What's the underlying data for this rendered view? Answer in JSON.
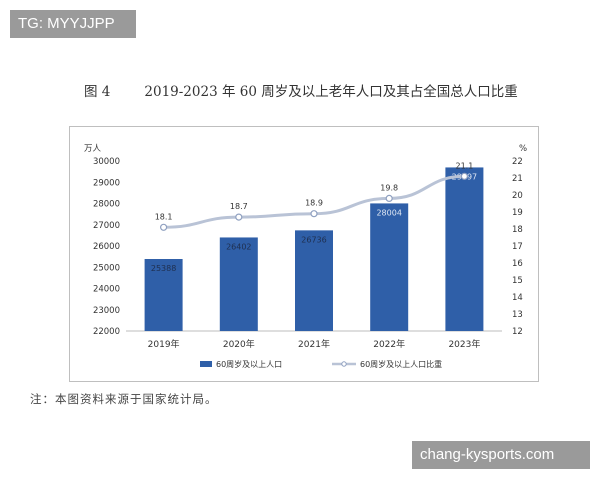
{
  "watermark_top": "TG: MYYJJPP",
  "watermark_bottom": "chang-kysports.com",
  "figure": {
    "label": "图 4",
    "title": "2019-2023 年 60 周岁及以上老年人口及其占全国总人口比重"
  },
  "note": "注：本图资料来源于国家统计局。",
  "chart_data": {
    "type": "bar+line",
    "categories": [
      "2019年",
      "2020年",
      "2021年",
      "2022年",
      "2023年"
    ],
    "series": [
      {
        "name": "60周岁及以上人口",
        "kind": "bar",
        "axis": "left",
        "values": [
          25388,
          26402,
          26736,
          28004,
          29697
        ],
        "color": "#2f5fa8"
      },
      {
        "name": "60周岁及以上人口比重",
        "kind": "line",
        "axis": "right",
        "values": [
          18.1,
          18.7,
          18.9,
          19.8,
          21.1
        ],
        "color": "#b9c3d6"
      }
    ],
    "y_left": {
      "unit": "万人",
      "range": [
        22000,
        30000
      ],
      "ticks": [
        22000,
        23000,
        24000,
        25000,
        26000,
        27000,
        28000,
        29000,
        30000
      ]
    },
    "y_right": {
      "unit": "%",
      "range": [
        12,
        22
      ],
      "ticks": [
        12,
        13,
        14,
        15,
        16,
        17,
        18,
        19,
        20,
        21,
        22
      ]
    },
    "legend": {
      "position": "bottom"
    },
    "grid": false
  }
}
